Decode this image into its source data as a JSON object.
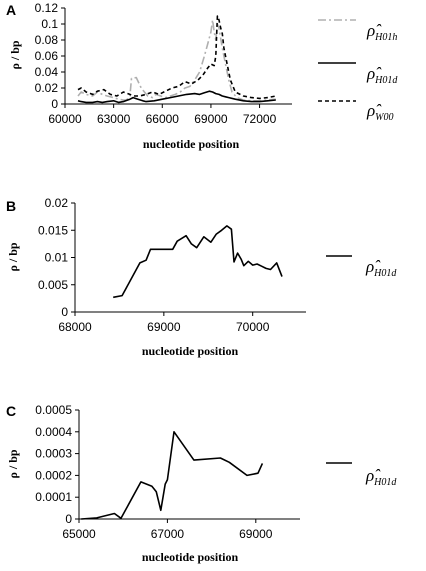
{
  "chart_data": [
    {
      "panel": "A",
      "type": "line",
      "xlabel": "nucleotide position",
      "ylabel": "ρ / bp",
      "xlim": [
        60000,
        74000
      ],
      "ylim": [
        0,
        0.12
      ],
      "x_ticks": [
        "60000",
        "63000",
        "66000",
        "69000",
        "72000"
      ],
      "y_ticks": [
        "0",
        "0.02",
        "0.04",
        "0.06",
        "0.08",
        "0.1",
        "0.12"
      ],
      "series": [
        {
          "name": "ρ̂ H01h",
          "legend_base": "ρ̂",
          "legend_sub": "H01h",
          "style": "dashdot",
          "color": "#b0b0b0",
          "x": [
            60800,
            61000,
            61300,
            61700,
            62000,
            62300,
            62600,
            63000,
            63300,
            63600,
            63800,
            64000,
            64100,
            64400,
            64700,
            64900,
            65100,
            65400,
            65600,
            65900,
            66200,
            66500,
            66800,
            67100,
            67400,
            67700,
            68000,
            68300,
            68600,
            68800,
            69000,
            69100,
            69200,
            69300,
            69400,
            69500,
            69700,
            69900,
            70100,
            70300,
            70600,
            71000,
            71500,
            72000,
            72500,
            73000
          ],
          "y": [
            0.01,
            0.015,
            0.012,
            0.01,
            0.015,
            0.012,
            0.01,
            0.008,
            0.006,
            0.005,
            0.005,
            0.01,
            0.032,
            0.033,
            0.02,
            0.015,
            0.01,
            0.008,
            0.012,
            0.01,
            0.008,
            0.01,
            0.012,
            0.015,
            0.02,
            0.022,
            0.03,
            0.04,
            0.06,
            0.075,
            0.09,
            0.105,
            0.09,
            0.08,
            0.1,
            0.095,
            0.07,
            0.05,
            0.03,
            0.015,
            0.008,
            0.005,
            0.004,
            0.004,
            0.005,
            0.006
          ]
        },
        {
          "name": "ρ̂ H01d",
          "legend_base": "ρ̂",
          "legend_sub": "H01d",
          "style": "solid",
          "color": "#000000",
          "x": [
            60800,
            61000,
            61300,
            61700,
            62000,
            62300,
            62600,
            63000,
            63300,
            63600,
            64000,
            64200,
            64500,
            64800,
            65000,
            65500,
            66000,
            66500,
            67000,
            67500,
            68000,
            68300,
            68600,
            68900,
            69100,
            69300,
            69500,
            69700,
            69900,
            70100,
            70500,
            71000,
            71500,
            72000,
            72500,
            73000
          ],
          "y": [
            0.004,
            0.003,
            0.002,
            0.002,
            0.003,
            0.002,
            0.003,
            0.004,
            0.002,
            0.003,
            0.006,
            0.008,
            0.006,
            0.004,
            0.003,
            0.004,
            0.006,
            0.008,
            0.01,
            0.012,
            0.013,
            0.012,
            0.014,
            0.016,
            0.015,
            0.013,
            0.012,
            0.01,
            0.009,
            0.008,
            0.006,
            0.004,
            0.003,
            0.003,
            0.004,
            0.005
          ]
        },
        {
          "name": "ρ̂ W00",
          "legend_base": "ρ̂",
          "legend_sub": "W00",
          "style": "dashed",
          "color": "#000000",
          "x": [
            60800,
            61000,
            61300,
            61700,
            62000,
            62400,
            62800,
            63200,
            63600,
            64000,
            64300,
            64600,
            65000,
            65400,
            65800,
            66200,
            66600,
            67000,
            67400,
            67800,
            68200,
            68500,
            68800,
            69000,
            69200,
            69300,
            69400,
            69500,
            69600,
            69700,
            69800,
            70000,
            70200,
            70500,
            71000,
            71500,
            72000,
            72500,
            73000
          ],
          "y": [
            0.018,
            0.02,
            0.015,
            0.012,
            0.016,
            0.018,
            0.012,
            0.01,
            0.015,
            0.012,
            0.01,
            0.01,
            0.012,
            0.015,
            0.012,
            0.016,
            0.02,
            0.022,
            0.028,
            0.025,
            0.03,
            0.036,
            0.045,
            0.05,
            0.048,
            0.06,
            0.11,
            0.105,
            0.095,
            0.088,
            0.07,
            0.05,
            0.03,
            0.015,
            0.01,
            0.008,
            0.007,
            0.008,
            0.01
          ]
        }
      ]
    },
    {
      "panel": "B",
      "type": "line",
      "xlabel": "nucleotide position",
      "ylabel": "ρ / bp",
      "xlim": [
        68000,
        70600
      ],
      "ylim": [
        0,
        0.02
      ],
      "x_ticks": [
        "68000",
        "69000",
        "70000"
      ],
      "y_ticks": [
        "0",
        "0.005",
        "0.01",
        "0.015",
        "0.02"
      ],
      "series": [
        {
          "name": "ρ̂ H01d",
          "legend_base": "ρ̂",
          "legend_sub": "H01d",
          "style": "solid",
          "color": "#000000",
          "x": [
            68430,
            68530,
            68630,
            68730,
            68800,
            68850,
            69000,
            69100,
            69150,
            69250,
            69310,
            69370,
            69450,
            69530,
            69590,
            69650,
            69710,
            69760,
            69790,
            69830,
            69870,
            69900,
            69950,
            70000,
            70050,
            70100,
            70150,
            70200,
            70270,
            70330
          ],
          "y": [
            0.0027,
            0.003,
            0.006,
            0.009,
            0.0095,
            0.0115,
            0.0115,
            0.0115,
            0.013,
            0.014,
            0.0125,
            0.0118,
            0.0138,
            0.0128,
            0.0143,
            0.015,
            0.0158,
            0.0152,
            0.0092,
            0.0108,
            0.0097,
            0.0085,
            0.0093,
            0.0086,
            0.0088,
            0.0084,
            0.008,
            0.0078,
            0.009,
            0.0065
          ]
        }
      ]
    },
    {
      "panel": "C",
      "type": "line",
      "xlabel": "nucleotide position",
      "ylabel": "ρ / bp",
      "xlim": [
        65000,
        70000
      ],
      "ylim": [
        0,
        0.0005
      ],
      "x_ticks": [
        "65000",
        "67000",
        "69000"
      ],
      "y_ticks": [
        "0",
        "0.0001",
        "0.0002",
        "0.0003",
        "0.0004",
        "0.0005"
      ],
      "series": [
        {
          "name": "ρ̂ H01d",
          "legend_base": "ρ̂",
          "legend_sub": "H01d",
          "style": "solid",
          "color": "#000000",
          "x": [
            65050,
            65400,
            65800,
            65950,
            66400,
            66650,
            66750,
            66850,
            66950,
            67000,
            67150,
            67600,
            68200,
            68400,
            68800,
            69050,
            69150
          ],
          "y": [
            0,
            5e-06,
            2.5e-05,
            3e-06,
            0.00017,
            0.00015,
            0.000125,
            4e-05,
            0.00016,
            0.00018,
            0.0004,
            0.00027,
            0.00028,
            0.00026,
            0.0002,
            0.00021,
            0.000255
          ]
        }
      ]
    }
  ]
}
